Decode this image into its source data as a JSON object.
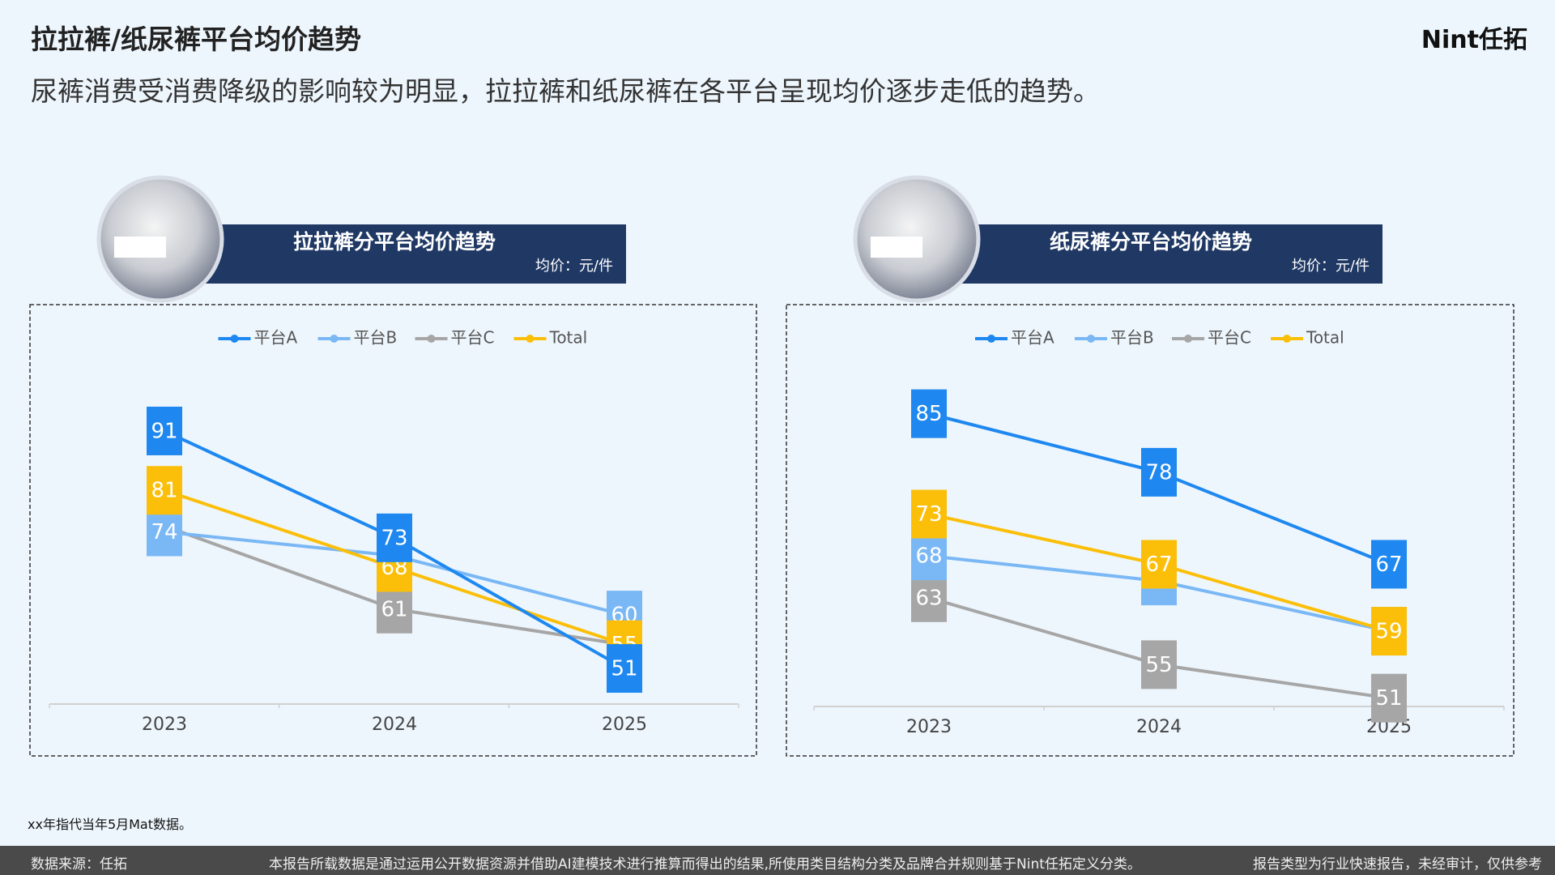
{
  "header": {
    "title": "拉拉裤/纸尿裤平台均价趋势",
    "subtitle": "尿裤消费受消费降级的影响较为明显，拉拉裤和纸尿裤在各平台呈现均价逐步走低的趋势。",
    "logo": "Nint任拓"
  },
  "chart_data": [
    {
      "type": "line",
      "title": "拉拉裤分平台均价趋势",
      "subtitle": "均价：元/件",
      "categories": [
        "2023",
        "2024",
        "2025"
      ],
      "ylim": [
        45,
        100
      ],
      "series": [
        {
          "name": "平台A",
          "color": "#1e88f0",
          "values": [
            91,
            73,
            51
          ]
        },
        {
          "name": "平台B",
          "color": "#7ab8f5",
          "values": [
            74,
            70,
            60
          ]
        },
        {
          "name": "平台C",
          "color": "#a6a6a6",
          "values": [
            75,
            61,
            55
          ]
        },
        {
          "name": "Total",
          "color": "#fbbf0a",
          "values": [
            81,
            68,
            55
          ]
        }
      ]
    },
    {
      "type": "line",
      "title": "纸尿裤分平台均价趋势",
      "subtitle": "均价：元/件",
      "categories": [
        "2023",
        "2024",
        "2025"
      ],
      "ylim": [
        50,
        90
      ],
      "series": [
        {
          "name": "平台A",
          "color": "#1e88f0",
          "values": [
            85,
            78,
            67
          ]
        },
        {
          "name": "平台B",
          "color": "#7ab8f5",
          "values": [
            68,
            65,
            59
          ]
        },
        {
          "name": "平台C",
          "color": "#a6a6a6",
          "values": [
            63,
            55,
            51
          ]
        },
        {
          "name": "Total",
          "color": "#fbbf0a",
          "values": [
            73,
            67,
            59
          ]
        }
      ]
    }
  ],
  "footnote": "xx年指代当年5月Mat数据。",
  "footer": {
    "source": "数据来源：任拓",
    "disclaimer": "本报告所载数据是通过运用公开数据资源并借助AI建模技术进行推算而得出的结果,所使用类目结构分类及品牌合并规则基于Nint任拓定义分类。",
    "note": "报告类型为行业快速报告，未经审计，仅供参考"
  }
}
